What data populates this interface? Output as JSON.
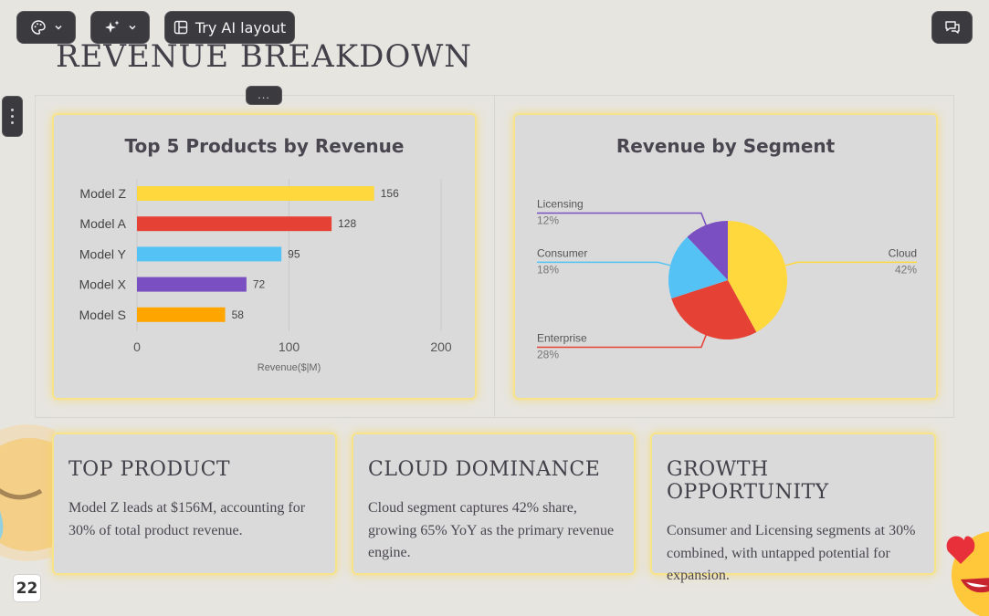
{
  "toolbar": {
    "ai_layout_label": "Try AI layout"
  },
  "slide": {
    "title": "REVENUE BREAKDOWN",
    "drag_handle": "...",
    "page_number": "22"
  },
  "colors": {
    "yellow": "#ffd83d",
    "red": "#e64135",
    "blue": "#55c2f5",
    "purple": "#7a4fc1",
    "orange": "#ffa500",
    "card_glow": "#f7e48a"
  },
  "chart_data": [
    {
      "type": "bar",
      "orientation": "horizontal",
      "title": "Top 5 Products by Revenue",
      "categories": [
        "Model Z",
        "Model A",
        "Model Y",
        "Model X",
        "Model S"
      ],
      "values": [
        156,
        128,
        95,
        72,
        58
      ],
      "value_labels": [
        "156",
        "128",
        "95",
        "72",
        "58"
      ],
      "colors": [
        "#ffd83d",
        "#e64135",
        "#55c2f5",
        "#7a4fc1",
        "#ffa500"
      ],
      "xlabel": "Revenue($|M)",
      "xlim": [
        0,
        200
      ],
      "xticks": [
        0,
        100,
        200
      ],
      "xtick_labels": [
        "0",
        "100",
        "200"
      ],
      "grid": true
    },
    {
      "type": "pie",
      "title": "Revenue by Segment",
      "slices": [
        {
          "label": "Cloud",
          "value": 42,
          "value_label": "42%",
          "color": "#ffd83d"
        },
        {
          "label": "Enterprise",
          "value": 28,
          "value_label": "28%",
          "color": "#e64135"
        },
        {
          "label": "Consumer",
          "value": 18,
          "value_label": "18%",
          "color": "#55c2f5"
        },
        {
          "label": "Licensing",
          "value": 12,
          "value_label": "12%",
          "color": "#7a4fc1"
        }
      ]
    }
  ],
  "cards": [
    {
      "title": "TOP PRODUCT",
      "text": "Model Z leads at $156M, accounting for 30% of total product revenue."
    },
    {
      "title": "CLOUD DOMINANCE",
      "text": "Cloud segment captures 42% share, growing 65% YoY as the primary revenue engine."
    },
    {
      "title": "GROWTH OPPORTUNITY",
      "text": "Consumer and Licensing segments at 30% combined, with untapped potential for expansion."
    }
  ]
}
